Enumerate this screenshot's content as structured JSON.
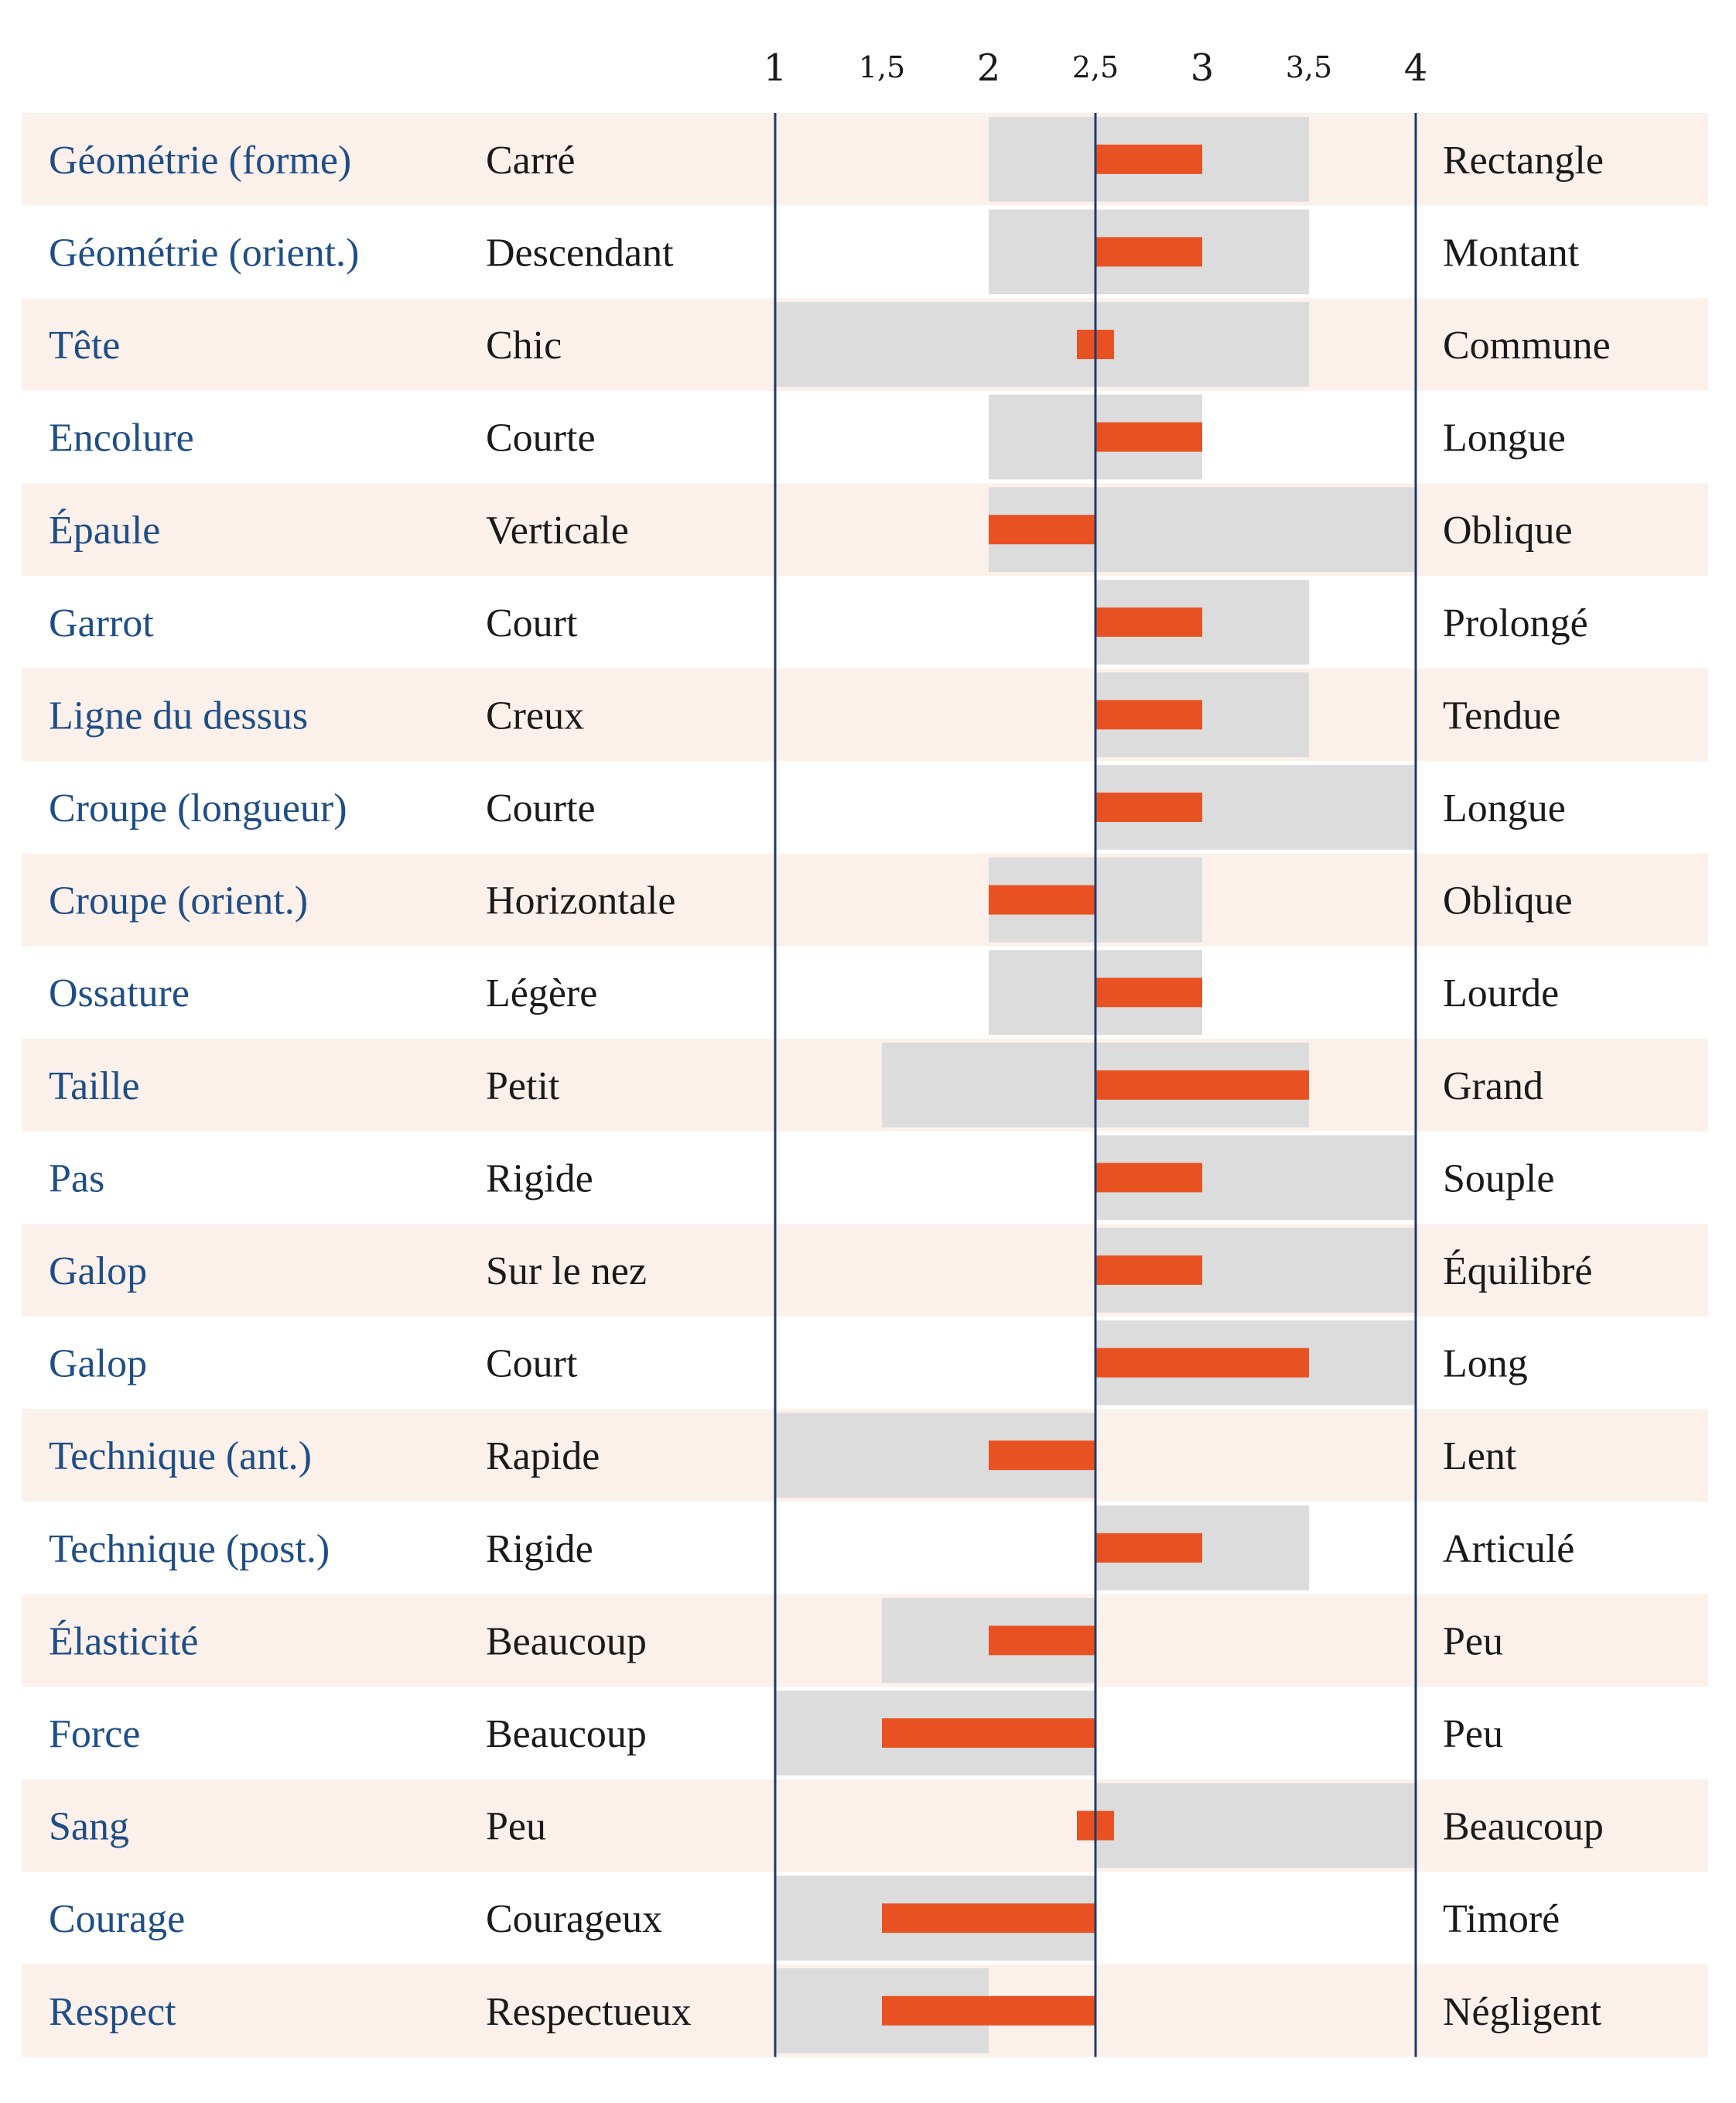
{
  "chart_data": {
    "type": "bar",
    "axis": {
      "min": 1,
      "max": 4,
      "ticks": [
        {
          "value": 1,
          "label": "1"
        },
        {
          "value": 1.5,
          "label": "1,5"
        },
        {
          "value": 2,
          "label": "2"
        },
        {
          "value": 2.5,
          "label": "2,5"
        },
        {
          "value": 3,
          "label": "3"
        },
        {
          "value": 3.5,
          "label": "3,5"
        },
        {
          "value": 4,
          "label": "4"
        }
      ],
      "reference_value": 2.5
    },
    "rows": [
      {
        "trait": "Géométrie (forme)",
        "low": "Carré",
        "high": "Rectangle",
        "range": [
          2,
          3.5
        ],
        "value": 3
      },
      {
        "trait": "Géométrie (orient.)",
        "low": "Descendant",
        "high": "Montant",
        "range": [
          2,
          3.5
        ],
        "value": 3
      },
      {
        "trait": "Tête",
        "low": "Chic",
        "high": "Commune",
        "range": [
          1,
          3.5
        ],
        "value": 2.6
      },
      {
        "trait": "Encolure",
        "low": "Courte",
        "high": "Longue",
        "range": [
          2,
          3
        ],
        "value": 3
      },
      {
        "trait": "Épaule",
        "low": "Verticale",
        "high": "Oblique",
        "range": [
          2,
          4
        ],
        "value": 2
      },
      {
        "trait": "Garrot",
        "low": "Court",
        "high": "Prolongé",
        "range": [
          2.5,
          3.5
        ],
        "value": 3
      },
      {
        "trait": "Ligne du dessus",
        "low": "Creux",
        "high": "Tendue",
        "range": [
          2.5,
          3.5
        ],
        "value": 3
      },
      {
        "trait": "Croupe (longueur)",
        "low": "Courte",
        "high": "Longue",
        "range": [
          2.5,
          4
        ],
        "value": 3
      },
      {
        "trait": "Croupe (orient.)",
        "low": "Horizontale",
        "high": "Oblique",
        "range": [
          2,
          3
        ],
        "value": 2
      },
      {
        "trait": "Ossature",
        "low": "Légère",
        "high": "Lourde",
        "range": [
          2,
          3
        ],
        "value": 3
      },
      {
        "trait": "Taille",
        "low": "Petit",
        "high": "Grand",
        "range": [
          1.5,
          3.5
        ],
        "value": 3.5
      },
      {
        "trait": "Pas",
        "low": "Rigide",
        "high": "Souple",
        "range": [
          2.5,
          4
        ],
        "value": 3
      },
      {
        "trait": "Galop",
        "low": "Sur le nez",
        "high": "Équilibré",
        "range": [
          2.5,
          4
        ],
        "value": 3
      },
      {
        "trait": "Galop",
        "low": "Court",
        "high": "Long",
        "range": [
          2.5,
          4
        ],
        "value": 3.5
      },
      {
        "trait": "Technique (ant.)",
        "low": "Rapide",
        "high": "Lent",
        "range": [
          1,
          2.5
        ],
        "value": 2
      },
      {
        "trait": "Technique (post.)",
        "low": "Rigide",
        "high": "Articulé",
        "range": [
          2.5,
          3.5
        ],
        "value": 3
      },
      {
        "trait": "Élasticité",
        "low": "Beaucoup",
        "high": "Peu",
        "range": [
          1.5,
          2.5
        ],
        "value": 2
      },
      {
        "trait": "Force",
        "low": "Beaucoup",
        "high": "Peu",
        "range": [
          1,
          2.5
        ],
        "value": 1.5
      },
      {
        "trait": "Sang",
        "low": "Peu",
        "high": "Beaucoup",
        "range": [
          2.5,
          4
        ],
        "value": 2.6
      },
      {
        "trait": "Courage",
        "low": "Courageux",
        "high": "Timoré",
        "range": [
          1,
          2.5
        ],
        "value": 1.5
      },
      {
        "trait": "Respect",
        "low": "Respectueux",
        "high": "Négligent",
        "range": [
          1,
          2
        ],
        "value": 1.5
      }
    ],
    "colors": {
      "row_stripe": "#fcf0eb",
      "range_band": "#dcdcdc",
      "value_bar": "#e85222",
      "axis_line": "#1e3a6b",
      "trait_text": "#1f4e87",
      "pole_text": "#1a1a1a"
    }
  }
}
